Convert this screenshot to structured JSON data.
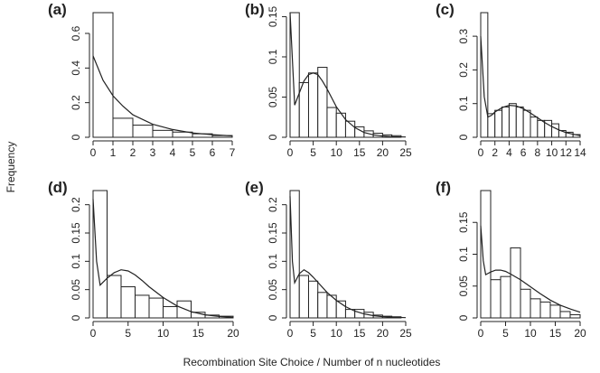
{
  "figure": {
    "ylabel": "Frequency",
    "xlabel": "Recombination Site Choice / Number of n nucleotides"
  },
  "chart_data": [
    {
      "id": "a",
      "panel_label": "(a)",
      "type": "bar",
      "bin_edges": [
        0,
        1,
        2,
        3,
        4,
        5,
        6,
        7
      ],
      "values": [
        0.72,
        0.11,
        0.07,
        0.04,
        0.03,
        0.02,
        0.01
      ],
      "xlim": [
        0,
        7
      ],
      "ylim": [
        0,
        0.72
      ],
      "xticks": [
        0,
        1,
        2,
        3,
        4,
        5,
        6,
        7
      ],
      "yticks": [
        0,
        0.2,
        0.4,
        0.6
      ],
      "curve": [
        [
          0,
          0.47
        ],
        [
          0.5,
          0.33
        ],
        [
          1,
          0.24
        ],
        [
          1.5,
          0.18
        ],
        [
          2,
          0.13
        ],
        [
          3,
          0.075
        ],
        [
          4,
          0.045
        ],
        [
          5,
          0.025
        ],
        [
          6,
          0.015
        ],
        [
          7,
          0.008
        ]
      ]
    },
    {
      "id": "b",
      "panel_label": "(b)",
      "type": "bar",
      "bin_edges": [
        0,
        2,
        4,
        6,
        8,
        10,
        12,
        14,
        16,
        18,
        20,
        22,
        24
      ],
      "values": [
        0.155,
        0.068,
        0.08,
        0.087,
        0.037,
        0.03,
        0.02,
        0.013,
        0.008,
        0.005,
        0.003,
        0.002
      ],
      "xlim": [
        0,
        25
      ],
      "ylim": [
        0,
        0.155
      ],
      "xticks": [
        0,
        5,
        10,
        15,
        20,
        25
      ],
      "yticks": [
        0,
        0.05,
        0.1,
        0.15
      ],
      "curve": [
        [
          0,
          0.155
        ],
        [
          1,
          0.04
        ],
        [
          2,
          0.055
        ],
        [
          3,
          0.07
        ],
        [
          4,
          0.078
        ],
        [
          5,
          0.08
        ],
        [
          6,
          0.078
        ],
        [
          7,
          0.07
        ],
        [
          8,
          0.06
        ],
        [
          9,
          0.049
        ],
        [
          10,
          0.038
        ],
        [
          12,
          0.022
        ],
        [
          14,
          0.012
        ],
        [
          16,
          0.006
        ],
        [
          18,
          0.003
        ],
        [
          20,
          0.0015
        ],
        [
          22,
          0.0008
        ],
        [
          25,
          0.0003
        ]
      ]
    },
    {
      "id": "c",
      "panel_label": "(c)",
      "type": "bar",
      "bin_edges": [
        0,
        1,
        2,
        3,
        4,
        5,
        6,
        7,
        8,
        9,
        10,
        11,
        12,
        13,
        14
      ],
      "values": [
        0.37,
        0.07,
        0.08,
        0.09,
        0.1,
        0.09,
        0.08,
        0.06,
        0.05,
        0.05,
        0.04,
        0.02,
        0.015,
        0.008
      ],
      "xlim": [
        0,
        14
      ],
      "ylim": [
        0,
        0.37
      ],
      "xticks": [
        0,
        2,
        4,
        6,
        8,
        10,
        12,
        14
      ],
      "yticks": [
        0,
        0.1,
        0.2,
        0.3
      ],
      "curve": [
        [
          0,
          0.3
        ],
        [
          0.5,
          0.12
        ],
        [
          1,
          0.06
        ],
        [
          1.5,
          0.065
        ],
        [
          2,
          0.075
        ],
        [
          3,
          0.088
        ],
        [
          4,
          0.095
        ],
        [
          5,
          0.093
        ],
        [
          6,
          0.085
        ],
        [
          7,
          0.072
        ],
        [
          8,
          0.058
        ],
        [
          9,
          0.044
        ],
        [
          10,
          0.032
        ],
        [
          11,
          0.022
        ],
        [
          12,
          0.014
        ],
        [
          13,
          0.009
        ],
        [
          14,
          0.005
        ]
      ]
    },
    {
      "id": "d",
      "panel_label": "(d)",
      "type": "bar",
      "bin_edges": [
        0,
        2,
        4,
        6,
        8,
        10,
        12,
        14,
        16,
        18,
        20
      ],
      "values": [
        0.225,
        0.075,
        0.055,
        0.04,
        0.035,
        0.02,
        0.03,
        0.01,
        0.005,
        0.003
      ],
      "xlim": [
        0,
        20
      ],
      "ylim": [
        0,
        0.225
      ],
      "xticks": [
        0,
        5,
        10,
        15,
        20
      ],
      "yticks": [
        0,
        0.05,
        0.1,
        0.15,
        0.2
      ],
      "curve": [
        [
          0,
          0.21
        ],
        [
          0.5,
          0.1
        ],
        [
          1,
          0.058
        ],
        [
          2,
          0.07
        ],
        [
          3,
          0.08
        ],
        [
          4,
          0.085
        ],
        [
          5,
          0.083
        ],
        [
          6,
          0.076
        ],
        [
          7,
          0.066
        ],
        [
          8,
          0.055
        ],
        [
          10,
          0.036
        ],
        [
          12,
          0.021
        ],
        [
          14,
          0.011
        ],
        [
          16,
          0.0055
        ],
        [
          18,
          0.0025
        ],
        [
          20,
          0.001
        ]
      ]
    },
    {
      "id": "e",
      "panel_label": "(e)",
      "type": "bar",
      "bin_edges": [
        0,
        2,
        4,
        6,
        8,
        10,
        12,
        14,
        16,
        18,
        20,
        22,
        24
      ],
      "values": [
        0.225,
        0.075,
        0.065,
        0.045,
        0.04,
        0.03,
        0.015,
        0.015,
        0.01,
        0.005,
        0.003,
        0.002
      ],
      "xlim": [
        0,
        25
      ],
      "ylim": [
        0,
        0.225
      ],
      "xticks": [
        0,
        5,
        10,
        15,
        20,
        25
      ],
      "yticks": [
        0,
        0.05,
        0.1,
        0.15,
        0.2
      ],
      "curve": [
        [
          0,
          0.215
        ],
        [
          0.5,
          0.1
        ],
        [
          1,
          0.062
        ],
        [
          2,
          0.078
        ],
        [
          3,
          0.085
        ],
        [
          4,
          0.08
        ],
        [
          5,
          0.072
        ],
        [
          6,
          0.063
        ],
        [
          8,
          0.045
        ],
        [
          10,
          0.031
        ],
        [
          12,
          0.02
        ],
        [
          14,
          0.012
        ],
        [
          16,
          0.007
        ],
        [
          18,
          0.004
        ],
        [
          20,
          0.0022
        ],
        [
          22,
          0.0012
        ],
        [
          25,
          0.0005
        ]
      ]
    },
    {
      "id": "f",
      "panel_label": "(f)",
      "type": "bar",
      "bin_edges": [
        0,
        2,
        4,
        6,
        8,
        10,
        12,
        14,
        16,
        18,
        20
      ],
      "values": [
        0.2,
        0.06,
        0.065,
        0.11,
        0.045,
        0.03,
        0.025,
        0.02,
        0.01,
        0.005
      ],
      "xlim": [
        0,
        20
      ],
      "ylim": [
        0,
        0.2
      ],
      "xticks": [
        0,
        5,
        10,
        15,
        20
      ],
      "yticks": [
        0,
        0.05,
        0.1,
        0.15
      ],
      "curve": [
        [
          0,
          0.145
        ],
        [
          0.5,
          0.09
        ],
        [
          1,
          0.068
        ],
        [
          2,
          0.072
        ],
        [
          3,
          0.075
        ],
        [
          4,
          0.075
        ],
        [
          5,
          0.073
        ],
        [
          6,
          0.069
        ],
        [
          8,
          0.06
        ],
        [
          10,
          0.049
        ],
        [
          12,
          0.038
        ],
        [
          14,
          0.028
        ],
        [
          16,
          0.02
        ],
        [
          18,
          0.014
        ],
        [
          20,
          0.009
        ]
      ]
    }
  ]
}
